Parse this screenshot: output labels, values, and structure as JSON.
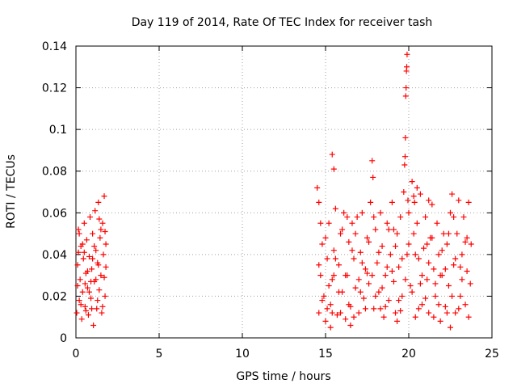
{
  "chart_data": {
    "type": "scatter",
    "title": "Day 119 of 2014, Rate Of TEC Index for receiver tash",
    "xlabel": "GPS time / hours",
    "ylabel": "ROTI / TECUs",
    "xlim": [
      0,
      25
    ],
    "ylim": [
      0,
      0.14
    ],
    "x_ticks": [
      "0",
      "5",
      "10",
      "15",
      "20",
      "25"
    ],
    "y_ticks": [
      "0",
      "0.02",
      "0.04",
      "0.06",
      "0.08",
      "0.1",
      "0.12",
      "0.14"
    ],
    "grid": true,
    "marker": "+",
    "color": "#ff0000",
    "series": [
      {
        "points": [
          [
            0.05,
            0.012
          ],
          [
            0.1,
            0.035
          ],
          [
            0.15,
            0.052
          ],
          [
            0.2,
            0.018
          ],
          [
            0.25,
            0.028
          ],
          [
            0.3,
            0.044
          ],
          [
            0.35,
            0.009
          ],
          [
            0.4,
            0.022
          ],
          [
            0.45,
            0.038
          ],
          [
            0.5,
            0.055
          ],
          [
            0.55,
            0.015
          ],
          [
            0.6,
            0.031
          ],
          [
            0.65,
            0.047
          ],
          [
            0.7,
            0.024
          ],
          [
            0.75,
            0.011
          ],
          [
            0.8,
            0.039
          ],
          [
            0.85,
            0.058
          ],
          [
            0.9,
            0.019
          ],
          [
            0.95,
            0.033
          ],
          [
            1.0,
            0.05
          ],
          [
            1.05,
            0.006
          ],
          [
            1.1,
            0.027
          ],
          [
            1.15,
            0.061
          ],
          [
            1.2,
            0.042
          ],
          [
            1.25,
            0.014
          ],
          [
            1.3,
            0.036
          ],
          [
            1.35,
            0.065
          ],
          [
            1.4,
            0.023
          ],
          [
            1.45,
            0.048
          ],
          [
            1.5,
            0.03
          ],
          [
            1.55,
            0.012
          ],
          [
            1.6,
            0.055
          ],
          [
            1.65,
            0.04
          ],
          [
            1.7,
            0.068
          ],
          [
            1.75,
            0.02
          ],
          [
            1.8,
            0.045
          ],
          [
            0.1,
            0.025
          ],
          [
            0.3,
            0.016
          ],
          [
            0.5,
            0.041
          ],
          [
            0.7,
            0.032
          ],
          [
            0.9,
            0.027
          ],
          [
            1.1,
            0.044
          ],
          [
            1.3,
            0.018
          ],
          [
            1.5,
            0.052
          ],
          [
            1.7,
            0.029
          ],
          [
            0.2,
            0.05
          ],
          [
            0.4,
            0.045
          ],
          [
            0.6,
            0.013
          ],
          [
            0.8,
            0.022
          ],
          [
            1.0,
            0.038
          ],
          [
            1.2,
            0.028
          ],
          [
            1.4,
            0.057
          ],
          [
            1.6,
            0.015
          ],
          [
            1.8,
            0.034
          ],
          [
            0.15,
            0.041
          ],
          [
            0.55,
            0.026
          ],
          [
            0.95,
            0.014
          ],
          [
            1.35,
            0.035
          ],
          [
            1.75,
            0.051
          ],
          [
            14.5,
            0.072
          ],
          [
            14.6,
            0.065
          ],
          [
            14.6,
            0.012
          ],
          [
            14.7,
            0.03
          ],
          [
            14.8,
            0.045
          ],
          [
            14.9,
            0.02
          ],
          [
            15.0,
            0.008
          ],
          [
            15.1,
            0.038
          ],
          [
            15.2,
            0.055
          ],
          [
            15.3,
            0.016
          ],
          [
            15.4,
            0.028
          ],
          [
            15.4,
            0.088
          ],
          [
            15.5,
            0.081
          ],
          [
            15.5,
            0.042
          ],
          [
            15.6,
            0.062
          ],
          [
            15.7,
            0.011
          ],
          [
            15.8,
            0.035
          ],
          [
            15.9,
            0.05
          ],
          [
            16.0,
            0.022
          ],
          [
            16.1,
            0.06
          ],
          [
            16.2,
            0.009
          ],
          [
            16.3,
            0.03
          ],
          [
            16.4,
            0.046
          ],
          [
            16.5,
            0.015
          ],
          [
            16.6,
            0.055
          ],
          [
            16.7,
            0.038
          ],
          [
            16.8,
            0.024
          ],
          [
            16.9,
            0.058
          ],
          [
            17.0,
            0.012
          ],
          [
            17.1,
            0.041
          ],
          [
            17.2,
            0.06
          ],
          [
            17.3,
            0.019
          ],
          [
            17.4,
            0.033
          ],
          [
            17.5,
            0.048
          ],
          [
            17.6,
            0.026
          ],
          [
            17.7,
            0.065
          ],
          [
            17.8,
            0.085
          ],
          [
            17.85,
            0.077
          ],
          [
            17.9,
            0.014
          ],
          [
            18.0,
            0.052
          ],
          [
            18.1,
            0.036
          ],
          [
            18.2,
            0.022
          ],
          [
            18.3,
            0.06
          ],
          [
            18.4,
            0.044
          ],
          [
            18.5,
            0.01
          ],
          [
            18.6,
            0.03
          ],
          [
            18.7,
            0.055
          ],
          [
            18.8,
            0.018
          ],
          [
            18.9,
            0.04
          ],
          [
            19.0,
            0.065
          ],
          [
            19.1,
            0.027
          ],
          [
            19.2,
            0.012
          ],
          [
            19.3,
            0.05
          ],
          [
            19.4,
            0.034
          ],
          [
            19.5,
            0.058
          ],
          [
            19.6,
            0.02
          ],
          [
            19.7,
            0.07
          ],
          [
            19.75,
            0.083
          ],
          [
            19.78,
            0.087
          ],
          [
            19.8,
            0.096
          ],
          [
            19.82,
            0.116
          ],
          [
            19.84,
            0.12
          ],
          [
            19.86,
            0.128
          ],
          [
            19.88,
            0.13
          ],
          [
            19.9,
            0.136
          ],
          [
            19.95,
            0.066
          ],
          [
            20.0,
            0.045
          ],
          [
            20.1,
            0.025
          ],
          [
            20.2,
            0.075
          ],
          [
            20.3,
            0.068
          ],
          [
            20.4,
            0.01
          ],
          [
            20.5,
            0.055
          ],
          [
            20.6,
            0.038
          ],
          [
            20.7,
            0.069
          ],
          [
            20.8,
            0.016
          ],
          [
            20.9,
            0.043
          ],
          [
            21.0,
            0.058
          ],
          [
            21.1,
            0.028
          ],
          [
            21.2,
            0.012
          ],
          [
            21.3,
            0.048
          ],
          [
            21.4,
            0.064
          ],
          [
            21.5,
            0.033
          ],
          [
            21.6,
            0.02
          ],
          [
            21.7,
            0.055
          ],
          [
            21.8,
            0.04
          ],
          [
            21.9,
            0.008
          ],
          [
            22.0,
            0.03
          ],
          [
            22.1,
            0.05
          ],
          [
            22.2,
            0.015
          ],
          [
            22.3,
            0.045
          ],
          [
            22.4,
            0.025
          ],
          [
            22.5,
            0.06
          ],
          [
            22.6,
            0.069
          ],
          [
            22.7,
            0.035
          ],
          [
            22.8,
            0.012
          ],
          [
            22.9,
            0.05
          ],
          [
            23.0,
            0.066
          ],
          [
            23.1,
            0.02
          ],
          [
            23.2,
            0.04
          ],
          [
            23.3,
            0.058
          ],
          [
            23.4,
            0.016
          ],
          [
            23.5,
            0.032
          ],
          [
            23.6,
            0.065
          ],
          [
            23.7,
            0.026
          ],
          [
            23.75,
            0.045
          ],
          [
            14.6,
            0.035
          ],
          [
            14.8,
            0.018
          ],
          [
            15.0,
            0.048
          ],
          [
            15.2,
            0.025
          ],
          [
            15.4,
            0.012
          ],
          [
            15.6,
            0.038
          ],
          [
            15.8,
            0.022
          ],
          [
            16.0,
            0.052
          ],
          [
            16.2,
            0.03
          ],
          [
            16.4,
            0.016
          ],
          [
            16.6,
            0.042
          ],
          [
            16.8,
            0.05
          ],
          [
            17.0,
            0.028
          ],
          [
            17.2,
            0.036
          ],
          [
            17.4,
            0.014
          ],
          [
            17.6,
            0.046
          ],
          [
            17.8,
            0.03
          ],
          [
            18.0,
            0.02
          ],
          [
            18.2,
            0.041
          ],
          [
            18.4,
            0.024
          ],
          [
            18.6,
            0.015
          ],
          [
            18.8,
            0.052
          ],
          [
            19.0,
            0.032
          ],
          [
            19.2,
            0.044
          ],
          [
            19.4,
            0.018
          ],
          [
            19.6,
            0.038
          ],
          [
            19.8,
            0.028
          ],
          [
            20.0,
            0.06
          ],
          [
            20.2,
            0.022
          ],
          [
            20.4,
            0.04
          ],
          [
            20.6,
            0.014
          ],
          [
            20.8,
            0.03
          ],
          [
            21.0,
            0.019
          ],
          [
            21.2,
            0.036
          ],
          [
            21.4,
            0.048
          ],
          [
            21.6,
            0.026
          ],
          [
            21.8,
            0.016
          ],
          [
            22.0,
            0.042
          ],
          [
            22.2,
            0.033
          ],
          [
            22.4,
            0.05
          ],
          [
            22.6,
            0.02
          ],
          [
            22.8,
            0.038
          ],
          [
            23.0,
            0.014
          ],
          [
            23.2,
            0.028
          ],
          [
            23.4,
            0.046
          ],
          [
            23.6,
            0.01
          ],
          [
            14.7,
            0.055
          ],
          [
            15.1,
            0.014
          ],
          [
            15.5,
            0.03
          ],
          [
            15.9,
            0.012
          ],
          [
            16.3,
            0.058
          ],
          [
            16.7,
            0.01
          ],
          [
            17.1,
            0.022
          ],
          [
            17.5,
            0.031
          ],
          [
            17.9,
            0.058
          ],
          [
            18.3,
            0.014
          ],
          [
            18.7,
            0.034
          ],
          [
            19.1,
            0.052
          ],
          [
            19.5,
            0.013
          ],
          [
            19.9,
            0.04
          ],
          [
            20.3,
            0.05
          ],
          [
            20.7,
            0.026
          ],
          [
            21.1,
            0.045
          ],
          [
            21.5,
            0.01
          ],
          [
            21.9,
            0.03
          ],
          [
            22.3,
            0.012
          ],
          [
            22.7,
            0.058
          ],
          [
            23.1,
            0.034
          ],
          [
            23.5,
            0.048
          ],
          [
            20.5,
            0.072
          ],
          [
            20.35,
            0.065
          ],
          [
            21.2,
            0.066
          ],
          [
            22.5,
            0.005
          ],
          [
            19.3,
            0.008
          ],
          [
            16.5,
            0.006
          ],
          [
            15.3,
            0.005
          ]
        ]
      }
    ]
  }
}
